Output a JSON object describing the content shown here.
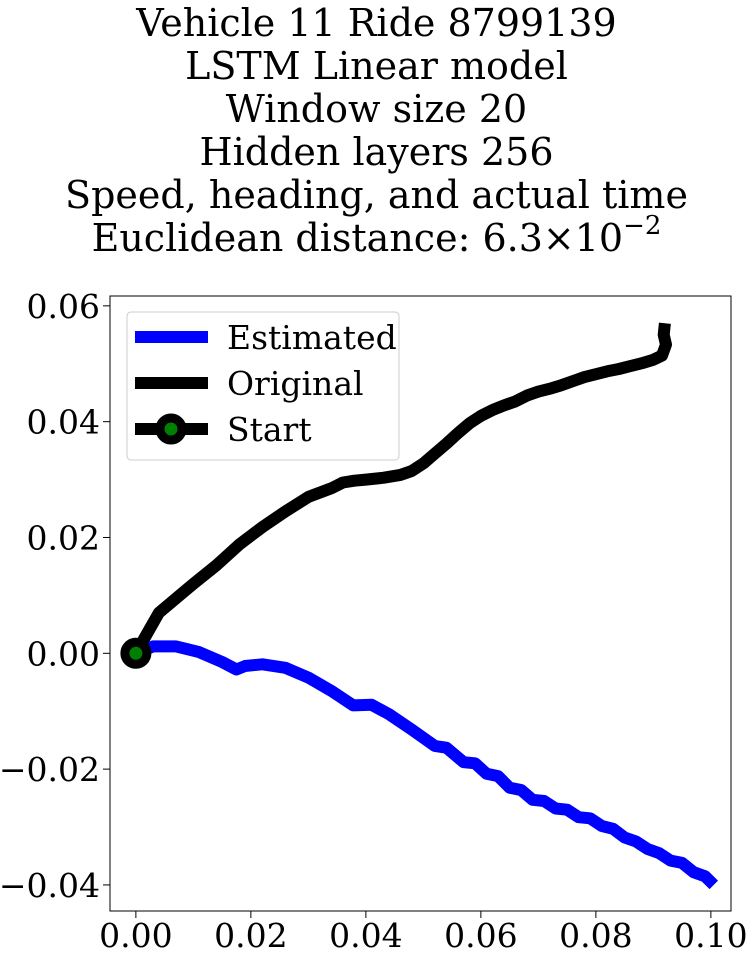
{
  "chart_data": {
    "type": "line",
    "title_lines": [
      "Vehicle 11 Ride 8799139",
      "LSTM Linear model",
      "Window size 20",
      "Hidden layers 256",
      "Speed, heading, and actual time"
    ],
    "distance_label": "Euclidean distance: 6.3×10",
    "distance_exponent": "−2",
    "xlim": [
      -0.0045,
      0.1035
    ],
    "ylim": [
      -0.0445,
      0.0617
    ],
    "xticks": [
      0.0,
      0.02,
      0.04,
      0.06,
      0.08,
      0.1
    ],
    "xtick_labels": [
      "0.00",
      "0.02",
      "0.04",
      "0.06",
      "0.08",
      "0.10"
    ],
    "yticks": [
      -0.04,
      -0.02,
      0.0,
      0.02,
      0.04,
      0.06
    ],
    "ytick_labels": [
      "−0.04",
      "−0.02",
      "0.00",
      "0.02",
      "0.04",
      "0.06"
    ],
    "grid": false,
    "legend_position": "upper-left",
    "series": [
      {
        "name": "Estimated",
        "color": "#0000ff",
        "points": [
          [
            0.0,
            0.0
          ],
          [
            0.003,
            0.0012
          ],
          [
            0.007,
            0.0012
          ],
          [
            0.011,
            0.0002
          ],
          [
            0.015,
            -0.0015
          ],
          [
            0.0175,
            -0.0028
          ],
          [
            0.019,
            -0.0022
          ],
          [
            0.022,
            -0.0019
          ],
          [
            0.026,
            -0.0025
          ],
          [
            0.03,
            -0.0042
          ],
          [
            0.034,
            -0.0065
          ],
          [
            0.0378,
            -0.009
          ],
          [
            0.041,
            -0.0089
          ],
          [
            0.044,
            -0.0105
          ],
          [
            0.048,
            -0.0132
          ],
          [
            0.052,
            -0.016
          ],
          [
            0.054,
            -0.0163
          ],
          [
            0.057,
            -0.0188
          ],
          [
            0.059,
            -0.019
          ],
          [
            0.061,
            -0.0208
          ],
          [
            0.063,
            -0.0212
          ],
          [
            0.065,
            -0.0232
          ],
          [
            0.067,
            -0.0236
          ],
          [
            0.069,
            -0.0253
          ],
          [
            0.071,
            -0.0255
          ],
          [
            0.073,
            -0.0268
          ],
          [
            0.075,
            -0.027
          ],
          [
            0.077,
            -0.0283
          ],
          [
            0.079,
            -0.0285
          ],
          [
            0.081,
            -0.0298
          ],
          [
            0.083,
            -0.0303
          ],
          [
            0.085,
            -0.0318
          ],
          [
            0.087,
            -0.0325
          ],
          [
            0.089,
            -0.0338
          ],
          [
            0.091,
            -0.0345
          ],
          [
            0.093,
            -0.0358
          ],
          [
            0.095,
            -0.0362
          ],
          [
            0.097,
            -0.0378
          ],
          [
            0.099,
            -0.0385
          ],
          [
            0.1005,
            -0.04
          ]
        ]
      },
      {
        "name": "Original",
        "color": "#000000",
        "points": [
          [
            0.0,
            0.0
          ],
          [
            0.002,
            0.0035
          ],
          [
            0.004,
            0.007
          ],
          [
            0.007,
            0.0095
          ],
          [
            0.01,
            0.012
          ],
          [
            0.014,
            0.0152
          ],
          [
            0.018,
            0.0188
          ],
          [
            0.022,
            0.0218
          ],
          [
            0.026,
            0.0245
          ],
          [
            0.03,
            0.027
          ],
          [
            0.034,
            0.0285
          ],
          [
            0.036,
            0.0295
          ],
          [
            0.038,
            0.0298
          ],
          [
            0.04,
            0.03
          ],
          [
            0.043,
            0.0303
          ],
          [
            0.046,
            0.0308
          ],
          [
            0.048,
            0.0315
          ],
          [
            0.05,
            0.0328
          ],
          [
            0.052,
            0.0345
          ],
          [
            0.054,
            0.0362
          ],
          [
            0.056,
            0.038
          ],
          [
            0.058,
            0.0397
          ],
          [
            0.06,
            0.041
          ],
          [
            0.062,
            0.042
          ],
          [
            0.064,
            0.0428
          ],
          [
            0.066,
            0.0435
          ],
          [
            0.068,
            0.0445
          ],
          [
            0.07,
            0.0452
          ],
          [
            0.072,
            0.0457
          ],
          [
            0.074,
            0.0463
          ],
          [
            0.076,
            0.047
          ],
          [
            0.078,
            0.0477
          ],
          [
            0.08,
            0.0482
          ],
          [
            0.082,
            0.0487
          ],
          [
            0.084,
            0.0491
          ],
          [
            0.086,
            0.0496
          ],
          [
            0.088,
            0.0501
          ],
          [
            0.09,
            0.0507
          ],
          [
            0.0915,
            0.0514
          ],
          [
            0.0922,
            0.0533
          ],
          [
            0.0918,
            0.055
          ],
          [
            0.092,
            0.057
          ]
        ]
      }
    ],
    "start_marker": {
      "name": "Start",
      "x": 0.0,
      "y": 0.0,
      "edge_color": "#000000",
      "face_color": "#008000"
    }
  }
}
